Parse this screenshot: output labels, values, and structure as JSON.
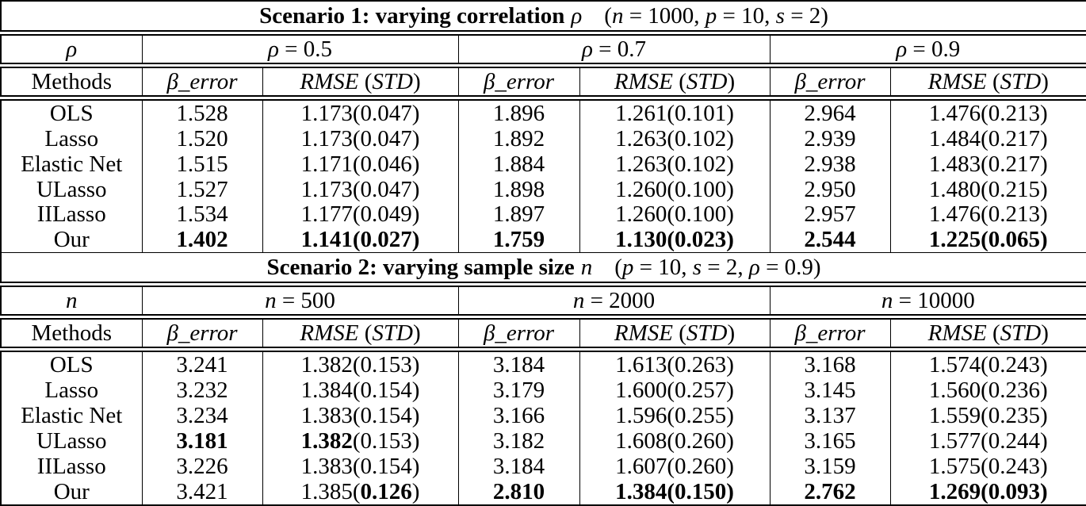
{
  "page": {
    "background": "#ffffff",
    "border_color": "#000000",
    "text_color": "#000000"
  },
  "tables": [
    {
      "title": {
        "bold": "Scenario 1: varying correlation",
        "math": "ρ",
        "params": "(n = 1000, p = 10, s = 2)"
      },
      "group_label": "ρ",
      "groups": [
        "ρ = 0.5",
        "ρ = 0.7",
        "ρ = 0.9"
      ],
      "headers": {
        "methods": "Methods",
        "beta": "β_error",
        "rmse": "RMSE (STD)"
      },
      "rows": [
        {
          "method": "OLS",
          "cols": [
            {
              "beta_error": "1.528",
              "beta_bold": false,
              "rmse": "1.173",
              "std": "0.047",
              "rmse_bold": false,
              "std_bold": false
            },
            {
              "beta_error": "1.896",
              "beta_bold": false,
              "rmse": "1.261",
              "std": "0.101",
              "rmse_bold": false,
              "std_bold": false
            },
            {
              "beta_error": "2.964",
              "beta_bold": false,
              "rmse": "1.476",
              "std": "0.213",
              "rmse_bold": false,
              "std_bold": false
            }
          ]
        },
        {
          "method": "Lasso",
          "cols": [
            {
              "beta_error": "1.520",
              "beta_bold": false,
              "rmse": "1.173",
              "std": "0.047",
              "rmse_bold": false,
              "std_bold": false
            },
            {
              "beta_error": "1.892",
              "beta_bold": false,
              "rmse": "1.263",
              "std": "0.102",
              "rmse_bold": false,
              "std_bold": false
            },
            {
              "beta_error": "2.939",
              "beta_bold": false,
              "rmse": "1.484",
              "std": "0.217",
              "rmse_bold": false,
              "std_bold": false
            }
          ]
        },
        {
          "method": "Elastic Net",
          "cols": [
            {
              "beta_error": "1.515",
              "beta_bold": false,
              "rmse": "1.171",
              "std": "0.046",
              "rmse_bold": false,
              "std_bold": false
            },
            {
              "beta_error": "1.884",
              "beta_bold": false,
              "rmse": "1.263",
              "std": "0.102",
              "rmse_bold": false,
              "std_bold": false
            },
            {
              "beta_error": "2.938",
              "beta_bold": false,
              "rmse": "1.483",
              "std": "0.217",
              "rmse_bold": false,
              "std_bold": false
            }
          ]
        },
        {
          "method": "ULasso",
          "cols": [
            {
              "beta_error": "1.527",
              "beta_bold": false,
              "rmse": "1.173",
              "std": "0.047",
              "rmse_bold": false,
              "std_bold": false
            },
            {
              "beta_error": "1.898",
              "beta_bold": false,
              "rmse": "1.260",
              "std": "0.100",
              "rmse_bold": false,
              "std_bold": false
            },
            {
              "beta_error": "2.950",
              "beta_bold": false,
              "rmse": "1.480",
              "std": "0.215",
              "rmse_bold": false,
              "std_bold": false
            }
          ]
        },
        {
          "method": "IILasso",
          "cols": [
            {
              "beta_error": "1.534",
              "beta_bold": false,
              "rmse": "1.177",
              "std": "0.049",
              "rmse_bold": false,
              "std_bold": false
            },
            {
              "beta_error": "1.897",
              "beta_bold": false,
              "rmse": "1.260",
              "std": "0.100",
              "rmse_bold": false,
              "std_bold": false
            },
            {
              "beta_error": "2.957",
              "beta_bold": false,
              "rmse": "1.476",
              "std": "0.213",
              "rmse_bold": false,
              "std_bold": false
            }
          ]
        },
        {
          "method": "Our",
          "cols": [
            {
              "beta_error": "1.402",
              "beta_bold": true,
              "rmse": "1.141",
              "std": "0.027",
              "rmse_bold": true,
              "std_bold": true
            },
            {
              "beta_error": "1.759",
              "beta_bold": true,
              "rmse": "1.130",
              "std": "0.023",
              "rmse_bold": true,
              "std_bold": true
            },
            {
              "beta_error": "2.544",
              "beta_bold": true,
              "rmse": "1.225",
              "std": "0.065",
              "rmse_bold": true,
              "std_bold": true
            }
          ]
        }
      ]
    },
    {
      "title": {
        "bold": "Scenario 2: varying sample size",
        "math": "n",
        "params": "(p = 10, s = 2, ρ = 0.9)"
      },
      "group_label": "n",
      "groups": [
        "n = 500",
        "n = 2000",
        "n = 10000"
      ],
      "headers": {
        "methods": "Methods",
        "beta": "β_error",
        "rmse": "RMSE (STD)"
      },
      "rows": [
        {
          "method": "OLS",
          "cols": [
            {
              "beta_error": "3.241",
              "beta_bold": false,
              "rmse": "1.382",
              "std": "0.153",
              "rmse_bold": false,
              "std_bold": false
            },
            {
              "beta_error": "3.184",
              "beta_bold": false,
              "rmse": "1.613",
              "std": "0.263",
              "rmse_bold": false,
              "std_bold": false
            },
            {
              "beta_error": "3.168",
              "beta_bold": false,
              "rmse": "1.574",
              "std": "0.243",
              "rmse_bold": false,
              "std_bold": false
            }
          ]
        },
        {
          "method": "Lasso",
          "cols": [
            {
              "beta_error": "3.232",
              "beta_bold": false,
              "rmse": "1.384",
              "std": "0.154",
              "rmse_bold": false,
              "std_bold": false
            },
            {
              "beta_error": "3.179",
              "beta_bold": false,
              "rmse": "1.600",
              "std": "0.257",
              "rmse_bold": false,
              "std_bold": false
            },
            {
              "beta_error": "3.145",
              "beta_bold": false,
              "rmse": "1.560",
              "std": "0.236",
              "rmse_bold": false,
              "std_bold": false
            }
          ]
        },
        {
          "method": "Elastic Net",
          "cols": [
            {
              "beta_error": "3.234",
              "beta_bold": false,
              "rmse": "1.383",
              "std": "0.154",
              "rmse_bold": false,
              "std_bold": false
            },
            {
              "beta_error": "3.166",
              "beta_bold": false,
              "rmse": "1.596",
              "std": "0.255",
              "rmse_bold": false,
              "std_bold": false
            },
            {
              "beta_error": "3.137",
              "beta_bold": false,
              "rmse": "1.559",
              "std": "0.235",
              "rmse_bold": false,
              "std_bold": false
            }
          ]
        },
        {
          "method": "ULasso",
          "cols": [
            {
              "beta_error": "3.181",
              "beta_bold": true,
              "rmse": "1.382",
              "std": "0.153",
              "rmse_bold": true,
              "std_bold": false
            },
            {
              "beta_error": "3.182",
              "beta_bold": false,
              "rmse": "1.608",
              "std": "0.260",
              "rmse_bold": false,
              "std_bold": false
            },
            {
              "beta_error": "3.165",
              "beta_bold": false,
              "rmse": "1.577",
              "std": "0.244",
              "rmse_bold": false,
              "std_bold": false
            }
          ]
        },
        {
          "method": "IILasso",
          "cols": [
            {
              "beta_error": "3.226",
              "beta_bold": false,
              "rmse": "1.383",
              "std": "0.154",
              "rmse_bold": false,
              "std_bold": false
            },
            {
              "beta_error": "3.184",
              "beta_bold": false,
              "rmse": "1.607",
              "std": "0.260",
              "rmse_bold": false,
              "std_bold": false
            },
            {
              "beta_error": "3.159",
              "beta_bold": false,
              "rmse": "1.575",
              "std": "0.243",
              "rmse_bold": false,
              "std_bold": false
            }
          ]
        },
        {
          "method": "Our",
          "cols": [
            {
              "beta_error": "3.421",
              "beta_bold": false,
              "rmse": "1.385",
              "std": "0.126",
              "rmse_bold": false,
              "std_bold": true
            },
            {
              "beta_error": "2.810",
              "beta_bold": true,
              "rmse": "1.384",
              "std": "0.150",
              "rmse_bold": true,
              "std_bold": true
            },
            {
              "beta_error": "2.762",
              "beta_bold": true,
              "rmse": "1.269",
              "std": "0.093",
              "rmse_bold": true,
              "std_bold": true
            }
          ]
        }
      ]
    }
  ]
}
